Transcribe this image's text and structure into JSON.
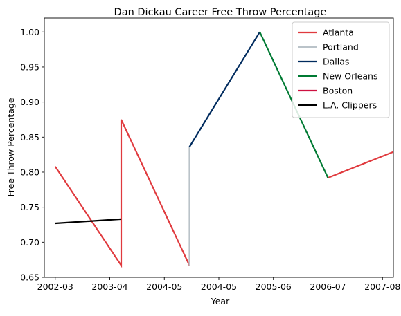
{
  "chart_data": {
    "type": "line",
    "title": "Dan Dickau Career Free Throw Percentage",
    "xlabel": "Year",
    "ylabel": "Free Throw Percentage",
    "xlim": [
      -0.2,
      6.2
    ],
    "ylim": [
      0.65,
      1.02
    ],
    "x_ticks": [
      {
        "pos": 0,
        "label": "2002-03"
      },
      {
        "pos": 1,
        "label": "2003-04"
      },
      {
        "pos": 2,
        "label": "2004-05"
      },
      {
        "pos": 3,
        "label": "2004-05"
      },
      {
        "pos": 4,
        "label": "2005-06"
      },
      {
        "pos": 5,
        "label": "2006-07"
      },
      {
        "pos": 6,
        "label": "2007-08"
      }
    ],
    "y_ticks": [
      "0.65",
      "0.70",
      "0.75",
      "0.80",
      "0.85",
      "0.90",
      "0.95",
      "1.00"
    ],
    "legend_position": "top-right",
    "grid": false,
    "series": [
      {
        "name": "Atlanta",
        "color": "#e03a3e",
        "segments": [
          [
            [
              0,
              0.808
            ],
            [
              1.21,
              0.667
            ],
            [
              1.21,
              0.875
            ],
            [
              2.46,
              0.667
            ]
          ],
          [
            [
              5,
              0.792
            ],
            [
              6.2,
              0.829
            ]
          ]
        ]
      },
      {
        "name": "Portland",
        "color": "#bac3c9",
        "segments": [
          [
            [
              2.46,
              0.667
            ],
            [
              2.46,
              0.836
            ]
          ]
        ]
      },
      {
        "name": "Dallas",
        "color": "#002b5e",
        "segments": [
          [
            [
              2.46,
              0.836
            ],
            [
              3.75,
              1.0
            ]
          ]
        ]
      },
      {
        "name": "New Orleans",
        "color": "#007a33",
        "segments": [
          [
            [
              3.75,
              1.0
            ],
            [
              5,
              0.792
            ]
          ]
        ]
      },
      {
        "name": "Boston",
        "color": "#ce1141",
        "segments": []
      },
      {
        "name": "L.A. Clippers",
        "color": "#000000",
        "segments": [
          [
            [
              0,
              0.727
            ],
            [
              1.21,
              0.733
            ]
          ]
        ]
      }
    ]
  }
}
